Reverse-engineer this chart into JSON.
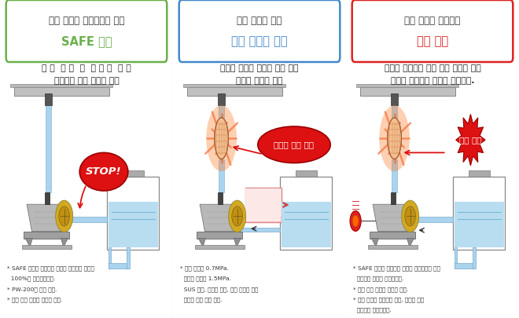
{
  "panel1": {
    "border_color": "#6ab04c",
    "title_line1": "이상 압력을 발생시키지 않는",
    "title_line2": "SAFE 모드",
    "title_color1": "#333333",
    "title_color2": "#6ab04c",
    "desc_line1": "차 단  운 전  시  송 액 의  힘 을",
    "desc_line2": "제어하여 압력 상승을 방지",
    "callout_text": "STOP!",
    "callout_bg": "#dd1111",
    "notes": [
      "* SAFE 모드를 사용하는 경우는 스트로크 길이를",
      "  100%로 설정하십시오.",
      "* PW-200은 사용 불가.",
      "* 공장 출하 시에는 무효로 설정."
    ]
  },
  "panel2": {
    "border_color": "#4488cc",
    "title_line1": "이상 압력을 빼는",
    "title_line2": "간이 릴리프 밸브",
    "title_color1": "#333333",
    "title_color2": "#4488cc",
    "desc_line1": "압력이 설정값 이상이 되면 간이",
    "desc_line2": "릴리프 밸브가 작동",
    "callout_text": "압력을 자동 개방",
    "callout_bg": "#dd1111",
    "notes": [
      "* 표준 타입은 0.7MPa.",
      "  보일러 타입은 1.5MPa.",
      "  SUS 타입, 고점도 타입, 고압 타입은 간이",
      "  릴리프 밸브 선정 불가."
    ]
  },
  "panel3": {
    "border_color": "#dd2222",
    "title_line1": "이상 압력을 알려주는",
    "title_line2": "경보 기능",
    "title_color1": "#333333",
    "title_color2": "#dd2222",
    "desc_line1": "배관의 막힘이나 차단 운전 등에서 이상",
    "desc_line2": "압력이 발생하면 경보로 알려준다.",
    "callout_text": "경보 출력",
    "callout_bg": "#dd1111",
    "notes": [
      "* SAFE 모드와 병용하는 경우는 평상시보다 낮은",
      "  압력에서 경보를 출력합니다.",
      "* 공장 출하 시에는 무효로 설정.",
      "* 경보 기능을 사용하는 경우, 별도의 신호",
      "  케이블이 필요합니다."
    ]
  },
  "bg_color": "#ffffff"
}
